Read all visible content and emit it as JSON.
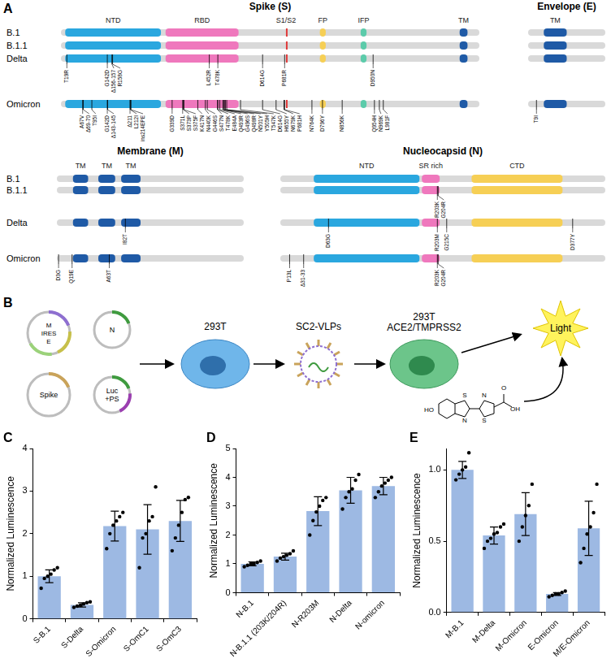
{
  "panel_a": {
    "label": "A",
    "groups": [
      {
        "proteins": [
          {
            "title": "Spike (S)",
            "length": 1273,
            "domains": [
              {
                "name": "NTD",
                "start": 14,
                "end": 305,
                "color": "#2aa7df"
              },
              {
                "name": "RBD",
                "start": 319,
                "end": 541,
                "color": "#ef78bd"
              },
              {
                "name": "S1/S2",
                "start": 685,
                "end": 686,
                "color": "#e03a3a"
              },
              {
                "name": "FP",
                "start": 788,
                "end": 806,
                "color": "#f6cf55"
              },
              {
                "name": "IFP",
                "start": 912,
                "end": 930,
                "color": "#5ccbaa"
              },
              {
                "name": "TM",
                "start": 1213,
                "end": 1237,
                "color": "#1f5aa6"
              }
            ],
            "variants": [
              {
                "name": "B.1",
                "mutations": []
              },
              {
                "name": "B.1.1",
                "mutations": []
              },
              {
                "name": "Delta",
                "mutations": [
                  {
                    "label": "T19R",
                    "pos": 19
                  },
                  {
                    "label": "G142D",
                    "pos": 142
                  },
                  {
                    "label": "Δ156-157",
                    "pos": 156
                  },
                  {
                    "label": "R158G",
                    "pos": 158
                  },
                  {
                    "label": "L452R",
                    "pos": 452
                  },
                  {
                    "label": "T478K",
                    "pos": 478
                  },
                  {
                    "label": "D614G",
                    "pos": 614
                  },
                  {
                    "label": "P681R",
                    "pos": 681
                  },
                  {
                    "label": "D950N",
                    "pos": 950
                  }
                ]
              },
              {
                "name": "Omicron",
                "mutations": [
                  {
                    "label": "A67V",
                    "pos": 67
                  },
                  {
                    "label": "Δ69-70",
                    "pos": 69
                  },
                  {
                    "label": "T95I",
                    "pos": 95
                  },
                  {
                    "label": "G142D",
                    "pos": 142
                  },
                  {
                    "label": "Δ143-145",
                    "pos": 143
                  },
                  {
                    "label": "Δ211",
                    "pos": 211
                  },
                  {
                    "label": "L212I",
                    "pos": 212
                  },
                  {
                    "label": "ins214EPE",
                    "pos": 214
                  },
                  {
                    "label": "G339D",
                    "pos": 339
                  },
                  {
                    "label": "S371L",
                    "pos": 371
                  },
                  {
                    "label": "S373P",
                    "pos": 373
                  },
                  {
                    "label": "S375F",
                    "pos": 375
                  },
                  {
                    "label": "K417N",
                    "pos": 417
                  },
                  {
                    "label": "N440K",
                    "pos": 440
                  },
                  {
                    "label": "G446S",
                    "pos": 446
                  },
                  {
                    "label": "S477N",
                    "pos": 477
                  },
                  {
                    "label": "T478K",
                    "pos": 478
                  },
                  {
                    "label": "E484A",
                    "pos": 484
                  },
                  {
                    "label": "Q493R",
                    "pos": 493
                  },
                  {
                    "label": "G496S",
                    "pos": 496
                  },
                  {
                    "label": "Q498R",
                    "pos": 498
                  },
                  {
                    "label": "N501Y",
                    "pos": 501
                  },
                  {
                    "label": "Y505H",
                    "pos": 505
                  },
                  {
                    "label": "T547K",
                    "pos": 547
                  },
                  {
                    "label": "D614G",
                    "pos": 614
                  },
                  {
                    "label": "H655Y",
                    "pos": 655
                  },
                  {
                    "label": "N679K",
                    "pos": 679
                  },
                  {
                    "label": "P681H",
                    "pos": 681
                  },
                  {
                    "label": "N764K",
                    "pos": 764
                  },
                  {
                    "label": "D796Y",
                    "pos": 796
                  },
                  {
                    "label": "N856K",
                    "pos": 856
                  },
                  {
                    "label": "Q954H",
                    "pos": 954
                  },
                  {
                    "label": "N969K",
                    "pos": 969
                  },
                  {
                    "label": "L981F",
                    "pos": 981
                  }
                ]
              }
            ]
          },
          {
            "title": "Envelope (E)",
            "length": 75,
            "domains": [
              {
                "name": "TM",
                "start": 16,
                "end": 38,
                "color": "#1f5aa6"
              }
            ],
            "variants": [
              {
                "name": "B.1",
                "mutations": []
              },
              {
                "name": "B.1.1",
                "mutations": []
              },
              {
                "name": "Delta",
                "mutations": []
              },
              {
                "name": "Omicron",
                "mutations": [
                  {
                    "label": "T9I",
                    "pos": 9
                  }
                ]
              }
            ]
          }
        ]
      },
      {
        "proteins": [
          {
            "title": "Membrane (M)",
            "length": 222,
            "domains": [
              {
                "name": "TM",
                "start": 20,
                "end": 38,
                "color": "#1f5aa6"
              },
              {
                "name": "TM",
                "start": 50,
                "end": 70,
                "color": "#1f5aa6"
              },
              {
                "name": "TM",
                "start": 77,
                "end": 100,
                "color": "#1f5aa6"
              }
            ],
            "variants": [
              {
                "name": "B.1",
                "mutations": []
              },
              {
                "name": "B.1.1",
                "mutations": []
              },
              {
                "name": "Delta",
                "mutations": [
                  {
                    "label": "I82T",
                    "pos": 82
                  }
                ]
              },
              {
                "name": "Omicron",
                "mutations": [
                  {
                    "label": "D3G",
                    "pos": 3
                  },
                  {
                    "label": "Q19E",
                    "pos": 19
                  },
                  {
                    "label": "A63T",
                    "pos": 63
                  }
                ]
              }
            ]
          },
          {
            "title": "Nucleocapsid (N)",
            "length": 419,
            "domains": [
              {
                "name": "NTD",
                "start": 44,
                "end": 180,
                "color": "#2aa7df"
              },
              {
                "name": "SR rich",
                "start": 183,
                "end": 206,
                "color": "#ef78bd"
              },
              {
                "name": "CTD",
                "start": 247,
                "end": 364,
                "color": "#f6cf55"
              }
            ],
            "variants": [
              {
                "name": "B.1",
                "mutations": []
              },
              {
                "name": "B.1.1",
                "mutations": [
                  {
                    "label": "R203K",
                    "pos": 203
                  },
                  {
                    "label": "G204R",
                    "pos": 204
                  }
                ]
              },
              {
                "name": "Delta",
                "mutations": [
                  {
                    "label": "D63G",
                    "pos": 63
                  },
                  {
                    "label": "R203M",
                    "pos": 203
                  },
                  {
                    "label": "G215C",
                    "pos": 215
                  },
                  {
                    "label": "D377Y",
                    "pos": 377
                  }
                ]
              },
              {
                "name": "Omicron",
                "mutations": [
                  {
                    "label": "P13L",
                    "pos": 13
                  },
                  {
                    "label": "Δ31-33",
                    "pos": 31
                  },
                  {
                    "label": "R203K",
                    "pos": 203
                  },
                  {
                    "label": "G204R",
                    "pos": 204
                  }
                ]
              }
            ]
          }
        ]
      }
    ]
  },
  "panel_b": {
    "label": "B",
    "plasmids": [
      {
        "labels": [
          "M",
          "IRES",
          "E"
        ]
      },
      {
        "labels": [
          "N"
        ]
      },
      {
        "labels": [
          "Spike"
        ]
      },
      {
        "labels": [
          "Luc",
          "+PS"
        ]
      }
    ],
    "producer_cell": "293T",
    "particles": "SC2-VLPs",
    "target_cell": [
      "293T",
      "ACE2/TMPRSS2"
    ],
    "readout": "Light",
    "substrate_atoms": [
      "HO",
      "S",
      "N",
      "N",
      "S",
      "OH",
      "O"
    ]
  },
  "chart_data": [
    {
      "panel": "C",
      "type": "bar",
      "color": "#9db9e3",
      "grid": false,
      "ylabel": "Normalized Luminescence",
      "categories": [
        "S-B.1",
        "S-Delta",
        "S-Omicron",
        "S-OmC1",
        "S-OmC3"
      ],
      "values": [
        1.0,
        0.33,
        2.18,
        2.1,
        2.3
      ],
      "errors": [
        0.15,
        0.05,
        0.35,
        0.58,
        0.48
      ],
      "points": [
        [
          0.72,
          0.95,
          1.0,
          1.05,
          1.15,
          1.2
        ],
        [
          0.27,
          0.3,
          0.32,
          0.35,
          0.38,
          0.4
        ],
        [
          1.65,
          2.0,
          2.2,
          2.3,
          2.4,
          2.5
        ],
        [
          1.2,
          1.9,
          2.0,
          2.3,
          2.4,
          3.1
        ],
        [
          1.6,
          1.9,
          2.2,
          2.5,
          2.8,
          2.85
        ]
      ],
      "ylim": [
        0,
        4
      ],
      "yticks": [
        0,
        1,
        2,
        3,
        4
      ]
    },
    {
      "panel": "D",
      "type": "bar",
      "color": "#9db9e3",
      "grid": false,
      "ylabel": "Normalized Luminescence",
      "categories": [
        "N-B.1",
        "N-B.1.1 (203K/204R)",
        "N-R203M",
        "N-Delta",
        "N-omicron"
      ],
      "values": [
        1.0,
        1.25,
        2.83,
        3.55,
        3.7
      ],
      "errors": [
        0.07,
        0.12,
        0.5,
        0.45,
        0.3
      ],
      "points": [
        [
          0.9,
          0.95,
          1.0,
          1.0,
          1.05,
          1.1
        ],
        [
          1.1,
          1.2,
          1.25,
          1.3,
          1.35,
          1.45
        ],
        [
          2.0,
          2.5,
          2.8,
          3.0,
          3.2,
          3.3
        ],
        [
          2.9,
          3.3,
          3.5,
          3.6,
          3.9,
          4.1
        ],
        [
          3.3,
          3.5,
          3.7,
          3.8,
          3.9,
          4.0
        ]
      ],
      "ylim": [
        0,
        5
      ],
      "yticks": [
        0,
        1,
        2,
        3,
        4,
        5
      ]
    },
    {
      "panel": "E",
      "type": "bar",
      "color": "#9db9e3",
      "grid": false,
      "ylabel": "Normalized Luminescence",
      "categories": [
        "M-B.1",
        "M-Delta",
        "M-Omicron",
        "E-Omicron",
        "M/E-Omicron"
      ],
      "values": [
        1.0,
        0.54,
        0.69,
        0.13,
        0.59
      ],
      "errors": [
        0.06,
        0.06,
        0.15,
        0.01,
        0.19
      ],
      "points": [
        [
          0.93,
          0.97,
          1.0,
          1.02,
          1.12
        ],
        [
          0.45,
          0.5,
          0.52,
          0.55,
          0.56,
          0.6,
          0.62
        ],
        [
          0.5,
          0.6,
          0.68,
          0.75,
          0.9
        ],
        [
          0.11,
          0.12,
          0.13,
          0.13,
          0.14,
          0.15
        ],
        [
          0.35,
          0.45,
          0.55,
          0.6,
          0.7,
          0.9
        ]
      ],
      "ylim": [
        0,
        1.15
      ],
      "yticks": [
        {
          "value": 0,
          "label": "0.0"
        },
        {
          "value": 0.5,
          "label": "0.5"
        },
        {
          "value": 1,
          "label": "1.0"
        }
      ]
    }
  ]
}
